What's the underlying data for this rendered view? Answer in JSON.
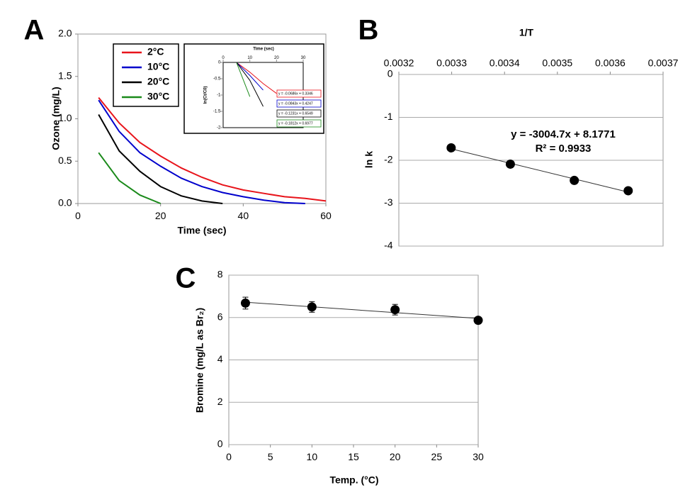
{
  "chart_data": [
    {
      "type": "line",
      "panel": "A",
      "x_label": "Time (sec)",
      "y_label": "Ozone (mg/L)",
      "x": [
        5,
        10,
        15,
        20,
        25,
        30,
        35,
        40,
        45,
        50,
        55,
        60
      ],
      "series": [
        {
          "name": "2°C",
          "color": "#e8141b",
          "values": [
            1.25,
            0.95,
            0.72,
            0.56,
            0.42,
            0.31,
            0.22,
            0.16,
            0.12,
            0.08,
            0.06,
            0.03
          ]
        },
        {
          "name": "10°C",
          "color": "#0000cc",
          "values": [
            1.22,
            0.85,
            0.6,
            0.44,
            0.3,
            0.2,
            0.13,
            0.08,
            0.04,
            0.01,
            0,
            null
          ]
        },
        {
          "name": "20°C",
          "color": "#000000",
          "values": [
            1.05,
            0.62,
            0.38,
            0.2,
            0.09,
            0.03,
            0,
            null,
            null,
            null,
            null,
            null
          ]
        },
        {
          "name": "30°C",
          "color": "#1a8a1a",
          "values": [
            0.6,
            0.27,
            0.1,
            0,
            null,
            null,
            null,
            null,
            null,
            null,
            null,
            null
          ]
        }
      ],
      "xlim": [
        0,
        60
      ],
      "xticks": [
        0,
        20,
        40,
        60
      ],
      "ylim": [
        0,
        2
      ],
      "yticks": [
        {
          "value": 0,
          "label": "0.0"
        },
        0.5,
        {
          "value": 1,
          "label": "1.0"
        },
        1.5,
        {
          "value": 2,
          "label": "2.0"
        }
      ],
      "grid": false,
      "legend": "upper-left"
    },
    {
      "type": "line",
      "x_label": "Time (sec)",
      "y_label": "ln(Ct/C0)",
      "xaxis_position": "top",
      "x": [
        5,
        10,
        15,
        20
      ],
      "series": [
        {
          "color": "#e8141b",
          "values": [
            0,
            -0.3,
            -0.65,
            -0.95
          ]
        },
        {
          "color": "#0000cc",
          "values": [
            0,
            -0.4,
            -0.85,
            null
          ]
        },
        {
          "color": "#000000",
          "values": [
            0,
            -0.55,
            -1.35,
            null
          ]
        },
        {
          "color": "#1a8a1a",
          "values": [
            0,
            -1.05,
            null,
            null
          ]
        }
      ],
      "annotations": [
        "y = -0.0686x + 0.3346",
        "y = -0.0843x + 0.4247",
        "y = -0.1231x + 0.6549",
        "y = -0.1812x + 0.6977"
      ],
      "xlim": [
        0,
        30
      ],
      "xticks": [
        0,
        10,
        20,
        30
      ],
      "ylim": [
        -2,
        0
      ],
      "yticks": [
        0,
        -0.5,
        -1,
        -1.5,
        -2
      ],
      "grid": false
    },
    {
      "type": "scatter",
      "panel": "B",
      "x_label": "1/T",
      "y_label": "ln k",
      "xaxis_position": "top",
      "x": [
        0.003299,
        0.003411,
        0.003532,
        0.003634
      ],
      "values": [
        -1.71,
        -2.09,
        -2.47,
        -2.71
      ],
      "color": "#000000",
      "annotations": [
        "y = -3004.7x + 8.1771",
        "R² = 0.9933"
      ],
      "trendline": true,
      "xlim": [
        0.0032,
        0.0037
      ],
      "xticks": [
        0.0032,
        0.0033,
        0.0034,
        0.0035,
        0.0036,
        0.0037
      ],
      "ylim": [
        -4,
        0
      ],
      "yticks": [
        0,
        -1,
        -2,
        -3,
        -4
      ],
      "grid": true
    },
    {
      "type": "scatter",
      "panel": "C",
      "x_label": "Temp. (°C)",
      "y_label": "Bromine (mg/L as Br₂)",
      "x": [
        2,
        10,
        20,
        30
      ],
      "values": [
        6.68,
        6.5,
        6.37,
        5.87
      ],
      "errors": [
        0.28,
        0.25,
        0.25,
        0.1
      ],
      "color": "#000000",
      "trendline": true,
      "xlim": [
        0,
        30
      ],
      "xticks": [
        0,
        5,
        10,
        15,
        20,
        25,
        30
      ],
      "ylim": [
        0,
        8
      ],
      "yticks": [
        0,
        2,
        4,
        6,
        8
      ],
      "grid": true
    }
  ]
}
